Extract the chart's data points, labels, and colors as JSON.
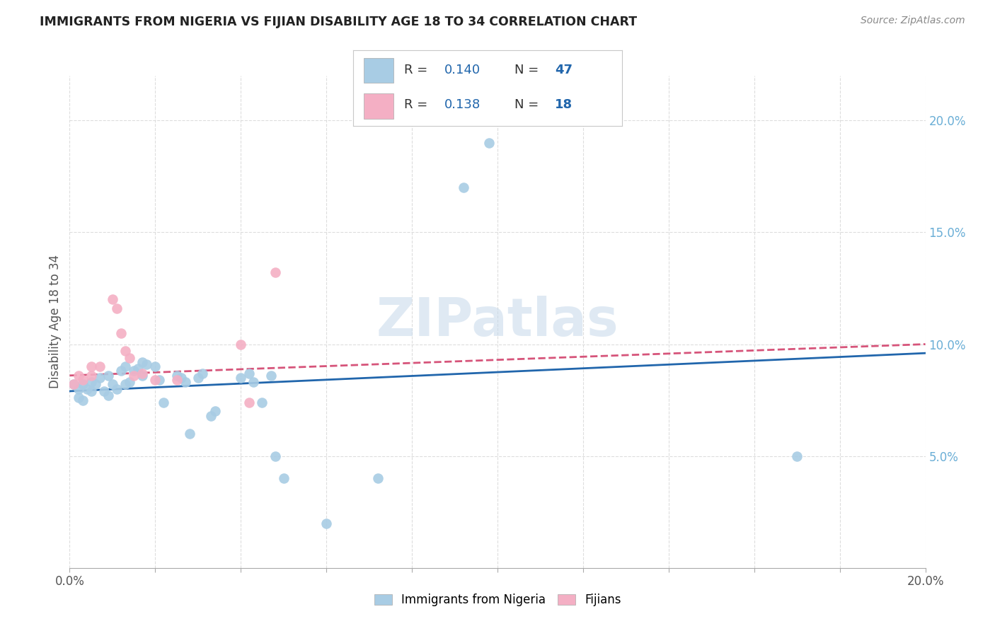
{
  "title": "IMMIGRANTS FROM NIGERIA VS FIJIAN DISABILITY AGE 18 TO 34 CORRELATION CHART",
  "source": "Source: ZipAtlas.com",
  "ylabel_label": "Disability Age 18 to 34",
  "xlim": [
    0.0,
    0.2
  ],
  "ylim": [
    0.0,
    0.22
  ],
  "xtick_labeled": [
    0.0,
    0.2
  ],
  "xtick_minor": [
    0.02,
    0.04,
    0.06,
    0.08,
    0.1,
    0.12,
    0.14,
    0.16,
    0.18
  ],
  "yticks_right": [
    0.05,
    0.1,
    0.15,
    0.2
  ],
  "nigeria_points": [
    [
      0.001,
      0.082
    ],
    [
      0.002,
      0.08
    ],
    [
      0.002,
      0.076
    ],
    [
      0.003,
      0.082
    ],
    [
      0.003,
      0.075
    ],
    [
      0.004,
      0.08
    ],
    [
      0.005,
      0.083
    ],
    [
      0.005,
      0.079
    ],
    [
      0.006,
      0.082
    ],
    [
      0.007,
      0.085
    ],
    [
      0.008,
      0.079
    ],
    [
      0.009,
      0.077
    ],
    [
      0.009,
      0.086
    ],
    [
      0.01,
      0.082
    ],
    [
      0.011,
      0.08
    ],
    [
      0.012,
      0.088
    ],
    [
      0.013,
      0.082
    ],
    [
      0.013,
      0.09
    ],
    [
      0.014,
      0.083
    ],
    [
      0.015,
      0.088
    ],
    [
      0.016,
      0.089
    ],
    [
      0.017,
      0.086
    ],
    [
      0.017,
      0.092
    ],
    [
      0.018,
      0.091
    ],
    [
      0.02,
      0.09
    ],
    [
      0.021,
      0.084
    ],
    [
      0.022,
      0.074
    ],
    [
      0.025,
      0.086
    ],
    [
      0.026,
      0.085
    ],
    [
      0.027,
      0.083
    ],
    [
      0.028,
      0.06
    ],
    [
      0.03,
      0.085
    ],
    [
      0.031,
      0.087
    ],
    [
      0.033,
      0.068
    ],
    [
      0.034,
      0.07
    ],
    [
      0.04,
      0.085
    ],
    [
      0.042,
      0.087
    ],
    [
      0.043,
      0.083
    ],
    [
      0.045,
      0.074
    ],
    [
      0.047,
      0.086
    ],
    [
      0.048,
      0.05
    ],
    [
      0.05,
      0.04
    ],
    [
      0.06,
      0.02
    ],
    [
      0.072,
      0.04
    ],
    [
      0.092,
      0.17
    ],
    [
      0.098,
      0.19
    ],
    [
      0.17,
      0.05
    ]
  ],
  "fijian_points": [
    [
      0.001,
      0.082
    ],
    [
      0.002,
      0.086
    ],
    [
      0.003,
      0.084
    ],
    [
      0.005,
      0.09
    ],
    [
      0.005,
      0.086
    ],
    [
      0.007,
      0.09
    ],
    [
      0.01,
      0.12
    ],
    [
      0.011,
      0.116
    ],
    [
      0.012,
      0.105
    ],
    [
      0.013,
      0.097
    ],
    [
      0.014,
      0.094
    ],
    [
      0.015,
      0.086
    ],
    [
      0.017,
      0.087
    ],
    [
      0.02,
      0.084
    ],
    [
      0.025,
      0.084
    ],
    [
      0.04,
      0.1
    ],
    [
      0.042,
      0.074
    ],
    [
      0.048,
      0.132
    ]
  ],
  "nigeria_line": [
    [
      0.0,
      0.079
    ],
    [
      0.2,
      0.096
    ]
  ],
  "fijian_line": [
    [
      0.0,
      0.086
    ],
    [
      0.2,
      0.1
    ]
  ],
  "nigeria_color": "#a8cce4",
  "fijian_color": "#f4afc4",
  "nigeria_line_color": "#2166ac",
  "fijian_line_color": "#d6547a",
  "legend_r1_value": "0.140",
  "legend_r1_n": "47",
  "legend_r2_value": "0.138",
  "legend_r2_n": "18",
  "legend_text_color": "#333333",
  "legend_value_color": "#2166ac",
  "legend_n_color": "#2166ac",
  "watermark": "ZIPatlas",
  "background_color": "#ffffff",
  "grid_color": "#dddddd",
  "right_tick_color": "#6aaed6",
  "bottom_label_nigeria": "Immigrants from Nigeria",
  "bottom_label_fijian": "Fijians"
}
